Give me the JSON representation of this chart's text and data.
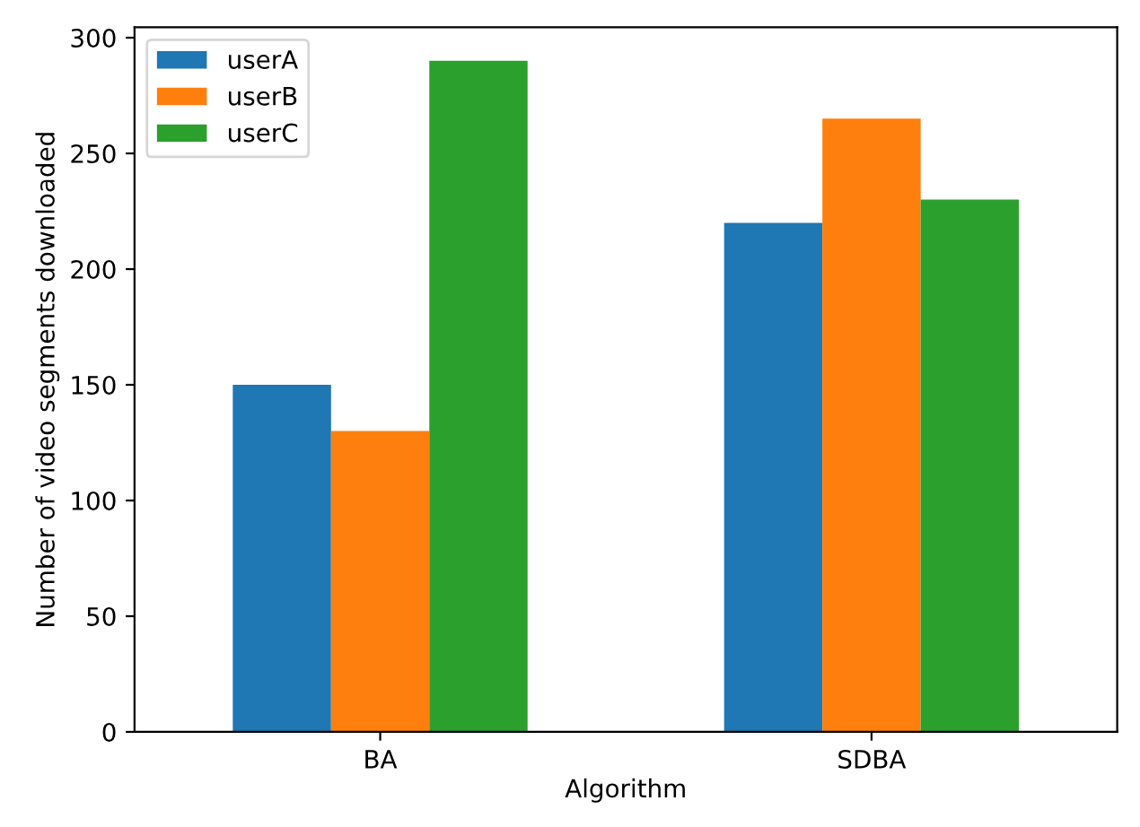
{
  "chart_data": {
    "type": "bar",
    "xlabel": "Algorithm",
    "ylabel": "Number of video segments downloaded",
    "categories": [
      "BA",
      "SDBA"
    ],
    "series": [
      {
        "name": "userA",
        "color": "#1f77b4",
        "values": [
          150,
          220
        ]
      },
      {
        "name": "userB",
        "color": "#ff7f0e",
        "values": [
          130,
          265
        ]
      },
      {
        "name": "userC",
        "color": "#2ca02c",
        "values": [
          290,
          230
        ]
      }
    ],
    "ylim": [
      0,
      304.5
    ],
    "yticks": [
      0,
      50,
      100,
      150,
      200,
      250,
      300
    ],
    "grid": false,
    "legend": "top left"
  }
}
